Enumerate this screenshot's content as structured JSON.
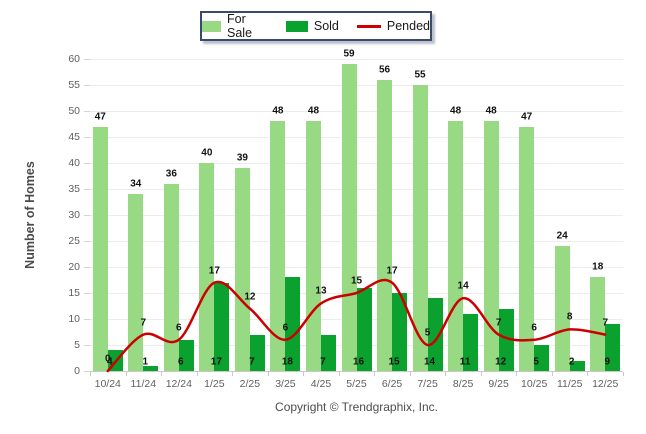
{
  "legend": {
    "items": [
      {
        "label": "For Sale",
        "swatch": "bar",
        "color": "#98da84"
      },
      {
        "label": "Sold",
        "swatch": "bar",
        "color": "#0aa12e"
      },
      {
        "label": "Pended",
        "swatch": "line",
        "color": "#cc0000"
      }
    ]
  },
  "y_axis": {
    "title": "Number of Homes"
  },
  "footer": {
    "text": "Copyright © Trendgraphix, Inc."
  },
  "chart_data": {
    "type": "bar",
    "title": "",
    "xlabel": "",
    "ylabel": "Number of Homes",
    "categories": [
      "10/24",
      "11/24",
      "12/24",
      "1/25",
      "2/25",
      "3/25",
      "4/25",
      "5/25",
      "6/25",
      "7/25",
      "8/25",
      "9/25",
      "10/25",
      "11/25",
      "12/25"
    ],
    "series": [
      {
        "name": "For Sale",
        "type": "bar",
        "color": "#98da84",
        "values": [
          47,
          34,
          36,
          40,
          39,
          48,
          48,
          59,
          56,
          55,
          48,
          48,
          47,
          24,
          18
        ]
      },
      {
        "name": "Sold",
        "type": "bar",
        "color": "#0aa12e",
        "values": [
          4,
          1,
          6,
          17,
          7,
          18,
          7,
          16,
          15,
          14,
          11,
          12,
          5,
          2,
          9
        ]
      },
      {
        "name": "Pended",
        "type": "line",
        "color": "#cc0000",
        "values": [
          0,
          7,
          6,
          17,
          12,
          6,
          13,
          15,
          17,
          5,
          14,
          7,
          6,
          8,
          7
        ]
      }
    ],
    "ylim": [
      0,
      60
    ],
    "ytick_step": 5,
    "grid": true,
    "legend_position": "top-center",
    "value_labels": true
  }
}
